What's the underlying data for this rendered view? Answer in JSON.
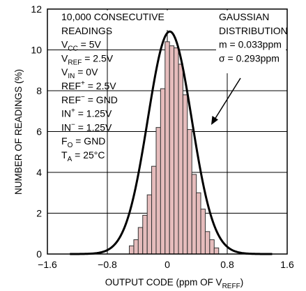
{
  "chart_data": {
    "type": "bar",
    "xlabel": "OUTPUT CODE (ppm OF V",
    "xlabel_sub": "REFF",
    "xlabel_end": ")",
    "ylabel": "NUMBER OF READINGS (%)",
    "xlim": [
      -1.6,
      1.6
    ],
    "ylim": [
      0,
      12
    ],
    "x_ticks": [
      "−1.6",
      "−0.8",
      "0",
      "0.8",
      "1.6"
    ],
    "x_tick_values": [
      -1.6,
      -0.8,
      0,
      0.8,
      1.6
    ],
    "y_ticks": [
      "0",
      "2",
      "4",
      "6",
      "8",
      "10",
      "12"
    ],
    "y_tick_values": [
      0,
      2,
      4,
      6,
      8,
      10,
      12
    ],
    "grid": true,
    "bar_color": "#e6bcbc",
    "bar_edge_color": "#333333",
    "curve_color": "#000000",
    "bin_width": 0.0596,
    "bins": [
      {
        "x": -0.477,
        "value": 0.4
      },
      {
        "x": -0.417,
        "value": 0.7
      },
      {
        "x": -0.358,
        "value": 1.3
      },
      {
        "x": -0.298,
        "value": 1.9
      },
      {
        "x": -0.238,
        "value": 2.9
      },
      {
        "x": -0.179,
        "value": 4.3
      },
      {
        "x": -0.119,
        "value": 6.2
      },
      {
        "x": -0.06,
        "value": 8.1
      },
      {
        "x": 0.0,
        "value": 10.4
      },
      {
        "x": 0.06,
        "value": 10.2
      },
      {
        "x": 0.119,
        "value": 10.1
      },
      {
        "x": 0.179,
        "value": 9.3
      },
      {
        "x": 0.238,
        "value": 7.8
      },
      {
        "x": 0.298,
        "value": 6.1
      },
      {
        "x": 0.358,
        "value": 3.9
      },
      {
        "x": 0.417,
        "value": 3.0
      },
      {
        "x": 0.477,
        "value": 2.2
      },
      {
        "x": 0.536,
        "value": 1.1
      },
      {
        "x": 0.596,
        "value": 0.7
      },
      {
        "x": 0.656,
        "value": 0.3
      }
    ],
    "gaussian": {
      "mean": 0.033,
      "sigma": 0.293,
      "peak": 10.9,
      "x_range": [
        -1.3,
        1.4
      ]
    }
  },
  "annotations": {
    "left_box": [
      {
        "parts": [
          {
            "t": "10,000 CONSECUTIVE"
          }
        ]
      },
      {
        "parts": [
          {
            "t": "READINGS"
          }
        ]
      },
      {
        "parts": [
          {
            "t": "V"
          },
          {
            "t": "CC",
            "sub": true
          },
          {
            "t": " = 5V"
          }
        ]
      },
      {
        "parts": [
          {
            "t": "V"
          },
          {
            "t": "REF",
            "sub": true
          },
          {
            "t": " = 2.5V"
          }
        ]
      },
      {
        "parts": [
          {
            "t": "V"
          },
          {
            "t": "IN",
            "sub": true
          },
          {
            "t": " = 0V"
          }
        ]
      },
      {
        "parts": [
          {
            "t": "REF"
          },
          {
            "t": "+",
            "sup": true
          },
          {
            "t": " = 2.5V"
          }
        ]
      },
      {
        "parts": [
          {
            "t": "REF"
          },
          {
            "t": "−",
            "sup": true
          },
          {
            "t": " = GND"
          }
        ]
      },
      {
        "parts": [
          {
            "t": "IN"
          },
          {
            "t": "+",
            "sup": true
          },
          {
            "t": " = 1.25V"
          }
        ]
      },
      {
        "parts": [
          {
            "t": "IN"
          },
          {
            "t": "−",
            "sup": true
          },
          {
            "t": " = 1.25V"
          }
        ]
      },
      {
        "parts": [
          {
            "t": "F"
          },
          {
            "t": "O",
            "sub": true
          },
          {
            "t": " = GND"
          }
        ]
      },
      {
        "parts": [
          {
            "t": "T"
          },
          {
            "t": "A",
            "sub": true
          },
          {
            "t": " = 25°C"
          }
        ]
      }
    ],
    "right_box": [
      {
        "parts": [
          {
            "t": "GAUSSIAN"
          }
        ]
      },
      {
        "parts": [
          {
            "t": "DISTRIBUTION"
          }
        ]
      },
      {
        "parts": [
          {
            "t": "m = 0.033ppm"
          }
        ]
      },
      {
        "parts": [
          {
            "t": "σ = 0.293ppm"
          }
        ]
      }
    ]
  }
}
